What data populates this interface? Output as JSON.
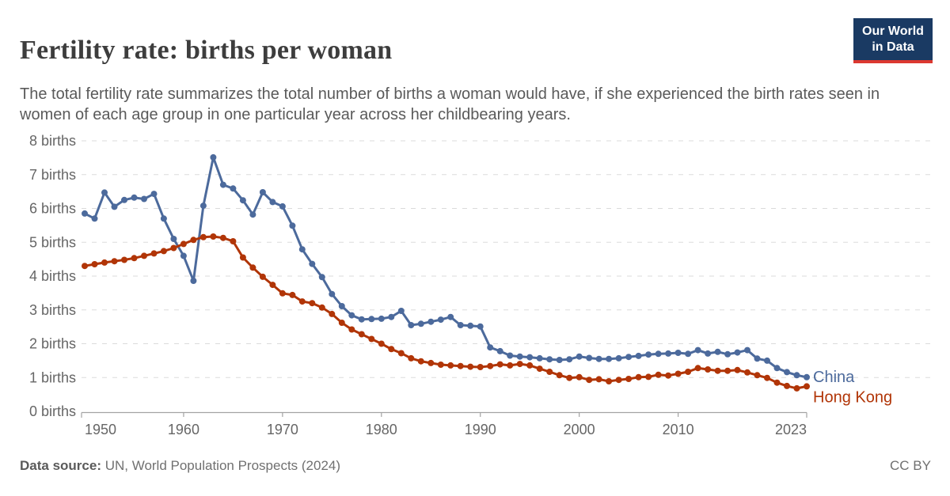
{
  "header": {
    "title": "Fertility rate: births per woman",
    "subtitle": "The total fertility rate summarizes the total number of births a woman would have, if she experienced the birth rates seen in women of each age group in one particular year across her childbearing years.",
    "logo": {
      "line1": "Our World",
      "line2": "in Data"
    }
  },
  "footer": {
    "source_label": "Data source:",
    "source_text": " UN, World Population Prospects (2024)",
    "license": "CC BY"
  },
  "colors": {
    "china": "#4C6A9C",
    "hong_kong": "#B13507",
    "grid": "#DBDBDB",
    "axis": "#A3A3A3",
    "tick_text": "#666666",
    "logo_bg": "#1A3A63",
    "logo_bar": "#DC3830"
  },
  "chart_data": {
    "type": "line",
    "title": "Fertility rate: births per woman",
    "xlabel": "",
    "ylabel": "births",
    "xlim": [
      1950,
      2023
    ],
    "ylim": [
      0,
      8
    ],
    "grid": "dashed horizontal gridlines at each integer",
    "legend_position": "labels at right end of each line",
    "x_ticks": [
      1950,
      1960,
      1970,
      1980,
      1990,
      2000,
      2010,
      2023
    ],
    "y_tick_values": [
      0,
      1,
      2,
      3,
      4,
      5,
      6,
      7,
      8
    ],
    "y_tick_labels": [
      "0 births",
      "1 births",
      "2 births",
      "3 births",
      "4 births",
      "5 births",
      "6 births",
      "7 births",
      "8 births"
    ],
    "x": [
      1950,
      1951,
      1952,
      1953,
      1954,
      1955,
      1956,
      1957,
      1958,
      1959,
      1960,
      1961,
      1962,
      1963,
      1964,
      1965,
      1966,
      1967,
      1968,
      1969,
      1970,
      1971,
      1972,
      1973,
      1974,
      1975,
      1976,
      1977,
      1978,
      1979,
      1980,
      1981,
      1982,
      1983,
      1984,
      1985,
      1986,
      1987,
      1988,
      1989,
      1990,
      1991,
      1992,
      1993,
      1994,
      1995,
      1996,
      1997,
      1998,
      1999,
      2000,
      2001,
      2002,
      2003,
      2004,
      2005,
      2006,
      2007,
      2008,
      2009,
      2010,
      2011,
      2012,
      2013,
      2014,
      2015,
      2016,
      2017,
      2018,
      2019,
      2020,
      2021,
      2022,
      2023
    ],
    "series": [
      {
        "name": "China",
        "color": "#4C6A9C",
        "values": [
          5.85,
          5.7,
          6.47,
          6.05,
          6.25,
          6.32,
          6.28,
          6.43,
          5.7,
          5.1,
          4.6,
          3.86,
          6.08,
          7.51,
          6.7,
          6.59,
          6.24,
          5.82,
          6.48,
          6.19,
          6.06,
          5.49,
          4.79,
          4.36,
          3.97,
          3.47,
          3.11,
          2.84,
          2.72,
          2.73,
          2.74,
          2.79,
          2.97,
          2.55,
          2.59,
          2.65,
          2.71,
          2.79,
          2.55,
          2.53,
          2.51,
          1.89,
          1.78,
          1.65,
          1.62,
          1.6,
          1.57,
          1.54,
          1.52,
          1.54,
          1.62,
          1.58,
          1.55,
          1.55,
          1.57,
          1.61,
          1.64,
          1.68,
          1.7,
          1.71,
          1.73,
          1.7,
          1.81,
          1.71,
          1.76,
          1.69,
          1.74,
          1.81,
          1.56,
          1.5,
          1.28,
          1.16,
          1.07,
          1.01
        ]
      },
      {
        "name": "Hong Kong",
        "color": "#B13507",
        "values": [
          4.3,
          4.35,
          4.4,
          4.44,
          4.48,
          4.53,
          4.6,
          4.67,
          4.74,
          4.83,
          4.95,
          5.07,
          5.15,
          5.17,
          5.13,
          5.03,
          4.55,
          4.25,
          3.98,
          3.74,
          3.49,
          3.44,
          3.25,
          3.2,
          3.07,
          2.88,
          2.62,
          2.42,
          2.28,
          2.14,
          2.0,
          1.84,
          1.72,
          1.57,
          1.48,
          1.43,
          1.38,
          1.36,
          1.34,
          1.32,
          1.31,
          1.34,
          1.39,
          1.36,
          1.4,
          1.36,
          1.26,
          1.17,
          1.07,
          0.99,
          1.01,
          0.93,
          0.95,
          0.89,
          0.93,
          0.96,
          1.01,
          1.02,
          1.08,
          1.06,
          1.11,
          1.17,
          1.28,
          1.24,
          1.2,
          1.2,
          1.22,
          1.15,
          1.07,
          0.99,
          0.85,
          0.75,
          0.68,
          0.74
        ]
      }
    ]
  }
}
